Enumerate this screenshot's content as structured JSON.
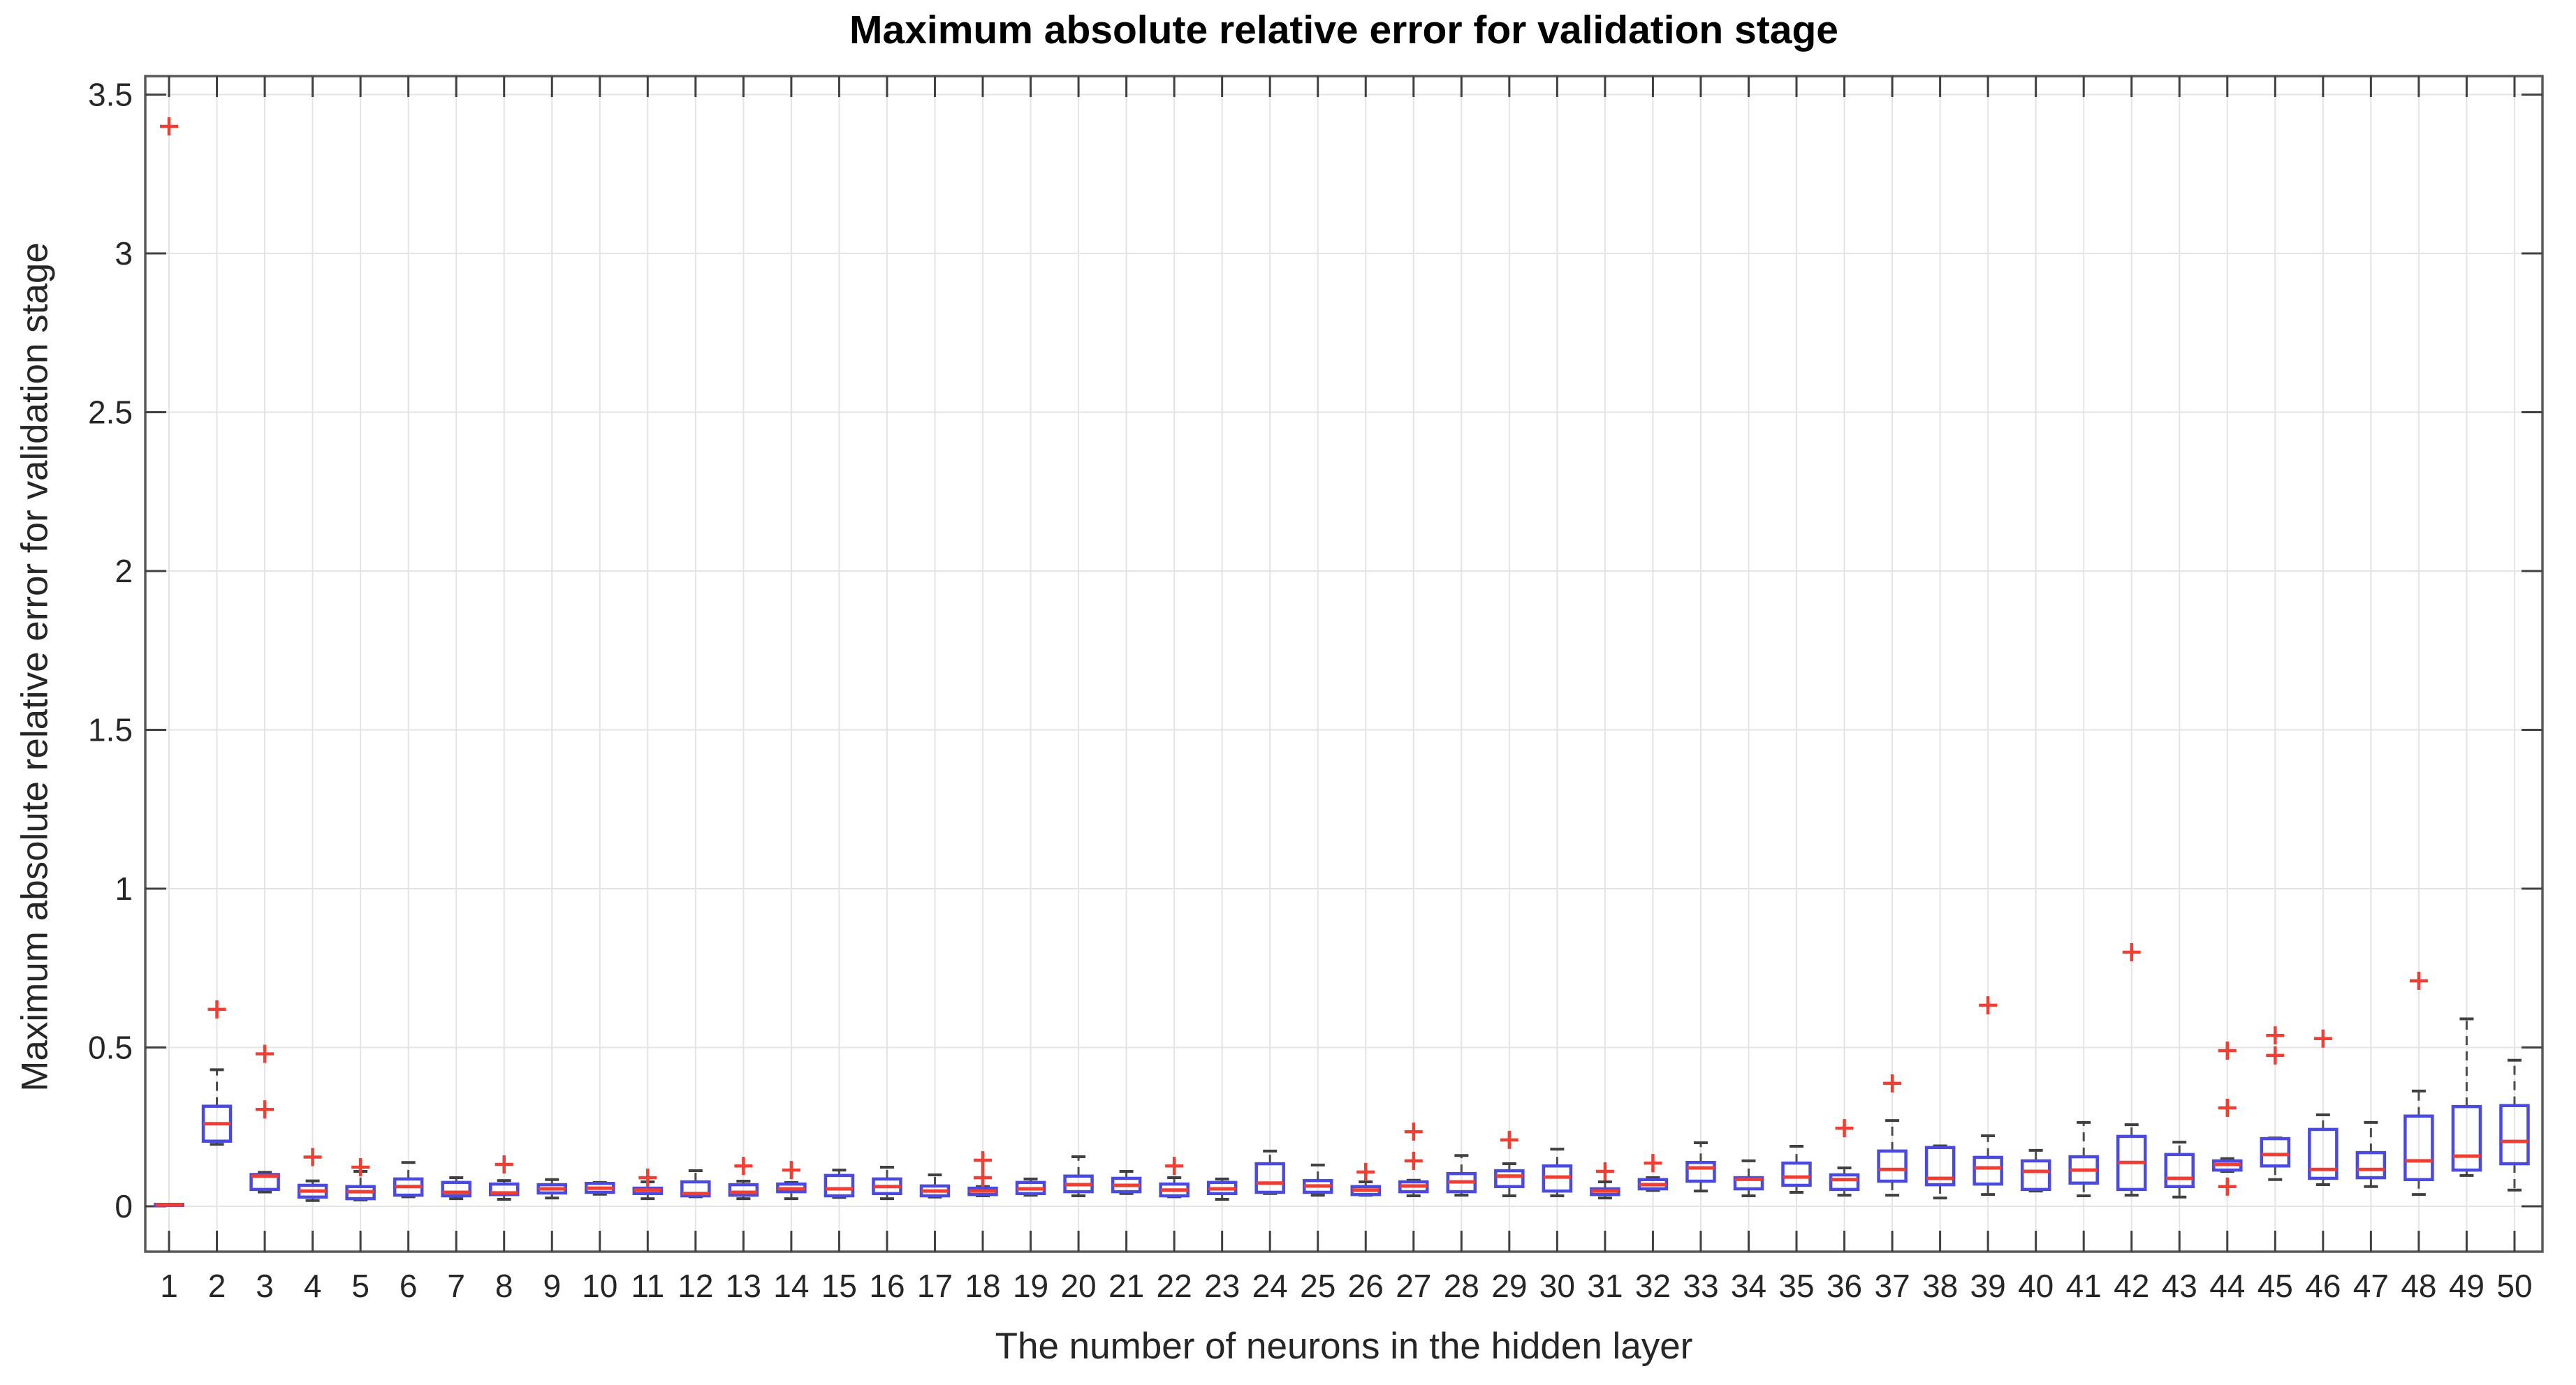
{
  "title": "Maximum absolute relative error for validation stage",
  "x_axis": {
    "label": "The number of neurons in the hidden layer"
  },
  "y_axis": {
    "label": "Maximum absolute relative error for validation stage"
  },
  "colors": {
    "box": "#4a4ade",
    "median": "#ee3f35",
    "outlier": "#ee3f35",
    "whisker": "#4d4d4d",
    "cap": "#404040",
    "grid": "#e4e4e4",
    "axis": "#5a5a5a",
    "tick_text": "#262626",
    "title_text": "#000000"
  },
  "chart_data": {
    "type": "boxplot",
    "title": "Maximum absolute relative error for validation stage",
    "xlabel": "The number of neurons in the hidden layer",
    "ylabel": "Maximum absolute relative error for validation stage",
    "grid": true,
    "ylim": [
      -0.143,
      3.558
    ],
    "y_ticks": [
      0,
      0.5,
      1,
      1.5,
      2,
      2.5,
      3,
      3.5
    ],
    "y_tick_labels": [
      "0",
      "0.5",
      "1",
      "1.5",
      "2",
      "2.5",
      "3",
      "3.5"
    ],
    "categories": [
      1,
      2,
      3,
      4,
      5,
      6,
      7,
      8,
      9,
      10,
      11,
      12,
      13,
      14,
      15,
      16,
      17,
      18,
      19,
      20,
      21,
      22,
      23,
      24,
      25,
      26,
      27,
      28,
      29,
      30,
      31,
      32,
      33,
      34,
      35,
      36,
      37,
      38,
      39,
      40,
      41,
      42,
      43,
      44,
      45,
      46,
      47,
      48,
      49,
      50
    ],
    "series": [
      {
        "n": 1,
        "low": 0.003,
        "q1": 0.003,
        "median": 0.004,
        "q3": 0.006,
        "high": 0.006,
        "outliers": [
          3.4
        ]
      },
      {
        "n": 2,
        "low": 0.195,
        "q1": 0.205,
        "median": 0.26,
        "q3": 0.315,
        "high": 0.43,
        "outliers": [
          0.62
        ]
      },
      {
        "n": 3,
        "low": 0.045,
        "q1": 0.053,
        "median": 0.095,
        "q3": 0.1,
        "high": 0.107,
        "outliers": [
          0.48,
          0.305
        ]
      },
      {
        "n": 4,
        "low": 0.018,
        "q1": 0.029,
        "median": 0.048,
        "q3": 0.066,
        "high": 0.08,
        "outliers": [
          0.155
        ]
      },
      {
        "n": 5,
        "low": 0.02,
        "q1": 0.024,
        "median": 0.046,
        "q3": 0.062,
        "high": 0.11,
        "outliers": [
          0.123
        ]
      },
      {
        "n": 6,
        "low": 0.03,
        "q1": 0.035,
        "median": 0.062,
        "q3": 0.086,
        "high": 0.138,
        "outliers": []
      },
      {
        "n": 7,
        "low": 0.024,
        "q1": 0.033,
        "median": 0.044,
        "q3": 0.075,
        "high": 0.09,
        "outliers": []
      },
      {
        "n": 8,
        "low": 0.022,
        "q1": 0.037,
        "median": 0.042,
        "q3": 0.07,
        "high": 0.081,
        "outliers": [
          0.132
        ]
      },
      {
        "n": 9,
        "low": 0.026,
        "q1": 0.042,
        "median": 0.055,
        "q3": 0.068,
        "high": 0.084,
        "outliers": []
      },
      {
        "n": 10,
        "low": 0.038,
        "q1": 0.044,
        "median": 0.057,
        "q3": 0.072,
        "high": 0.075,
        "outliers": []
      },
      {
        "n": 11,
        "low": 0.024,
        "q1": 0.04,
        "median": 0.051,
        "q3": 0.057,
        "high": 0.077,
        "outliers": [
          0.09
        ]
      },
      {
        "n": 12,
        "low": 0.03,
        "q1": 0.033,
        "median": 0.04,
        "q3": 0.077,
        "high": 0.112,
        "outliers": []
      },
      {
        "n": 13,
        "low": 0.024,
        "q1": 0.035,
        "median": 0.044,
        "q3": 0.068,
        "high": 0.079,
        "outliers": [
          0.127
        ]
      },
      {
        "n": 14,
        "low": 0.024,
        "q1": 0.046,
        "median": 0.055,
        "q3": 0.07,
        "high": 0.075,
        "outliers": [
          0.114
        ]
      },
      {
        "n": 15,
        "low": 0.028,
        "q1": 0.033,
        "median": 0.055,
        "q3": 0.097,
        "high": 0.114,
        "outliers": []
      },
      {
        "n": 16,
        "low": 0.024,
        "q1": 0.04,
        "median": 0.062,
        "q3": 0.086,
        "high": 0.123,
        "outliers": []
      },
      {
        "n": 17,
        "low": 0.029,
        "q1": 0.033,
        "median": 0.048,
        "q3": 0.064,
        "high": 0.099,
        "outliers": []
      },
      {
        "n": 18,
        "low": 0.033,
        "q1": 0.037,
        "median": 0.048,
        "q3": 0.057,
        "high": 0.062,
        "outliers": [
          0.145,
          0.09
        ]
      },
      {
        "n": 19,
        "low": 0.035,
        "q1": 0.04,
        "median": 0.055,
        "q3": 0.075,
        "high": 0.086,
        "outliers": []
      },
      {
        "n": 20,
        "low": 0.033,
        "q1": 0.046,
        "median": 0.068,
        "q3": 0.095,
        "high": 0.156,
        "outliers": []
      },
      {
        "n": 21,
        "low": 0.04,
        "q1": 0.046,
        "median": 0.066,
        "q3": 0.088,
        "high": 0.11,
        "outliers": []
      },
      {
        "n": 22,
        "low": 0.03,
        "q1": 0.033,
        "median": 0.051,
        "q3": 0.07,
        "high": 0.09,
        "outliers": [
          0.127
        ]
      },
      {
        "n": 23,
        "low": 0.022,
        "q1": 0.04,
        "median": 0.055,
        "q3": 0.075,
        "high": 0.086,
        "outliers": []
      },
      {
        "n": 24,
        "low": 0.04,
        "q1": 0.044,
        "median": 0.073,
        "q3": 0.134,
        "high": 0.174,
        "outliers": []
      },
      {
        "n": 25,
        "low": 0.035,
        "q1": 0.044,
        "median": 0.064,
        "q3": 0.081,
        "high": 0.13,
        "outliers": []
      },
      {
        "n": 26,
        "low": 0.035,
        "q1": 0.037,
        "median": 0.051,
        "q3": 0.062,
        "high": 0.077,
        "outliers": [
          0.108
        ]
      },
      {
        "n": 27,
        "low": 0.033,
        "q1": 0.046,
        "median": 0.064,
        "q3": 0.077,
        "high": 0.082,
        "outliers": [
          0.235,
          0.143
        ]
      },
      {
        "n": 28,
        "low": 0.035,
        "q1": 0.046,
        "median": 0.077,
        "q3": 0.103,
        "high": 0.16,
        "outliers": []
      },
      {
        "n": 29,
        "low": 0.033,
        "q1": 0.062,
        "median": 0.095,
        "q3": 0.112,
        "high": 0.134,
        "outliers": [
          0.209
        ]
      },
      {
        "n": 30,
        "low": 0.033,
        "q1": 0.048,
        "median": 0.092,
        "q3": 0.127,
        "high": 0.18,
        "outliers": []
      },
      {
        "n": 31,
        "low": 0.026,
        "q1": 0.037,
        "median": 0.048,
        "q3": 0.055,
        "high": 0.077,
        "outliers": [
          0.11
        ]
      },
      {
        "n": 32,
        "low": 0.05,
        "q1": 0.055,
        "median": 0.068,
        "q3": 0.084,
        "high": 0.09,
        "outliers": [
          0.136
        ]
      },
      {
        "n": 33,
        "low": 0.048,
        "q1": 0.079,
        "median": 0.121,
        "q3": 0.138,
        "high": 0.2,
        "outliers": []
      },
      {
        "n": 34,
        "low": 0.033,
        "q1": 0.055,
        "median": 0.085,
        "q3": 0.09,
        "high": 0.143,
        "outliers": []
      },
      {
        "n": 35,
        "low": 0.044,
        "q1": 0.066,
        "median": 0.092,
        "q3": 0.136,
        "high": 0.189,
        "outliers": []
      },
      {
        "n": 36,
        "low": 0.035,
        "q1": 0.053,
        "median": 0.084,
        "q3": 0.099,
        "high": 0.121,
        "outliers": [
          0.246
        ]
      },
      {
        "n": 37,
        "low": 0.035,
        "q1": 0.079,
        "median": 0.116,
        "q3": 0.174,
        "high": 0.27,
        "outliers": [
          0.387
        ]
      },
      {
        "n": 38,
        "low": 0.026,
        "q1": 0.068,
        "median": 0.088,
        "q3": 0.185,
        "high": 0.19,
        "outliers": []
      },
      {
        "n": 39,
        "low": 0.037,
        "q1": 0.07,
        "median": 0.121,
        "q3": 0.154,
        "high": 0.222,
        "outliers": [
          0.633
        ]
      },
      {
        "n": 40,
        "low": 0.048,
        "q1": 0.053,
        "median": 0.11,
        "q3": 0.143,
        "high": 0.176,
        "outliers": []
      },
      {
        "n": 41,
        "low": 0.033,
        "q1": 0.073,
        "median": 0.114,
        "q3": 0.156,
        "high": 0.264,
        "outliers": []
      },
      {
        "n": 42,
        "low": 0.035,
        "q1": 0.053,
        "median": 0.138,
        "q3": 0.22,
        "high": 0.257,
        "outliers": [
          0.8
        ]
      },
      {
        "n": 43,
        "low": 0.029,
        "q1": 0.062,
        "median": 0.088,
        "q3": 0.163,
        "high": 0.202,
        "outliers": []
      },
      {
        "n": 44,
        "low": 0.11,
        "q1": 0.114,
        "median": 0.132,
        "q3": 0.143,
        "high": 0.15,
        "outliers": [
          0.49,
          0.31,
          0.062
        ]
      },
      {
        "n": 45,
        "low": 0.084,
        "q1": 0.127,
        "median": 0.163,
        "q3": 0.213,
        "high": 0.215,
        "outliers": [
          0.538,
          0.475
        ]
      },
      {
        "n": 46,
        "low": 0.068,
        "q1": 0.088,
        "median": 0.116,
        "q3": 0.242,
        "high": 0.288,
        "outliers": [
          0.528
        ]
      },
      {
        "n": 47,
        "low": 0.062,
        "q1": 0.09,
        "median": 0.116,
        "q3": 0.169,
        "high": 0.264,
        "outliers": []
      },
      {
        "n": 48,
        "low": 0.037,
        "q1": 0.084,
        "median": 0.143,
        "q3": 0.284,
        "high": 0.363,
        "outliers": [
          0.71
        ]
      },
      {
        "n": 49,
        "low": 0.097,
        "q1": 0.114,
        "median": 0.158,
        "q3": 0.314,
        "high": 0.59,
        "outliers": []
      },
      {
        "n": 50,
        "low": 0.051,
        "q1": 0.134,
        "median": 0.204,
        "q3": 0.317,
        "high": 0.46,
        "outliers": []
      }
    ]
  }
}
